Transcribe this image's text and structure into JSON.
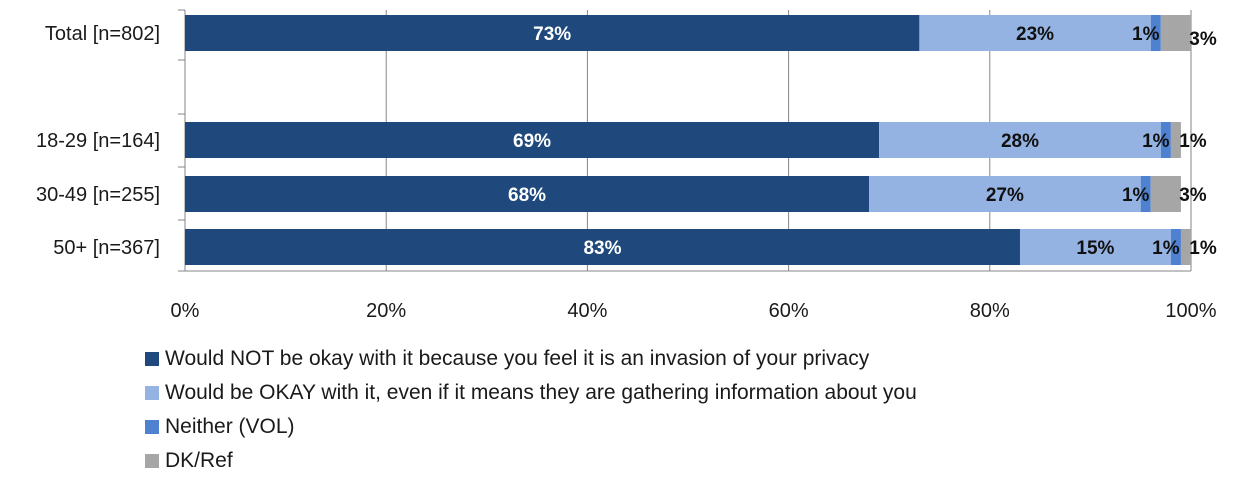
{
  "chart_data": {
    "type": "bar",
    "orientation": "horizontal",
    "stacked": true,
    "categories": [
      "Total [n=802]",
      "18-29 [n=164]",
      "30-49 [n=255]",
      "50+ [n=367]"
    ],
    "series": [
      {
        "name": "Would NOT be okay with it because you feel it is an invasion of your privacy",
        "color": "#1f497d",
        "values": [
          73,
          69,
          68,
          83
        ],
        "labels": [
          "73%",
          "69%",
          "68%",
          "83%"
        ]
      },
      {
        "name": "Would be OKAY with it, even if it means they are gathering information about you",
        "color": "#95b3e2",
        "values": [
          23,
          28,
          27,
          15
        ],
        "labels": [
          "23%",
          "28%",
          "27%",
          "15%"
        ]
      },
      {
        "name": "Neither (VOL)",
        "color": "#4f81d1",
        "values": [
          1,
          1,
          1,
          1
        ],
        "labels": [
          "1%",
          "1%",
          "1%",
          "1%"
        ]
      },
      {
        "name": "DK/Ref",
        "color": "#a6a6a6",
        "values": [
          3,
          1,
          3,
          1
        ],
        "labels": [
          "3%",
          "1%",
          "3%",
          "1%"
        ]
      }
    ],
    "x_ticks": [
      "0%",
      "20%",
      "40%",
      "60%",
      "80%",
      "100%"
    ],
    "xlim": [
      0,
      100
    ],
    "grid": true,
    "legend_position": "bottom"
  }
}
